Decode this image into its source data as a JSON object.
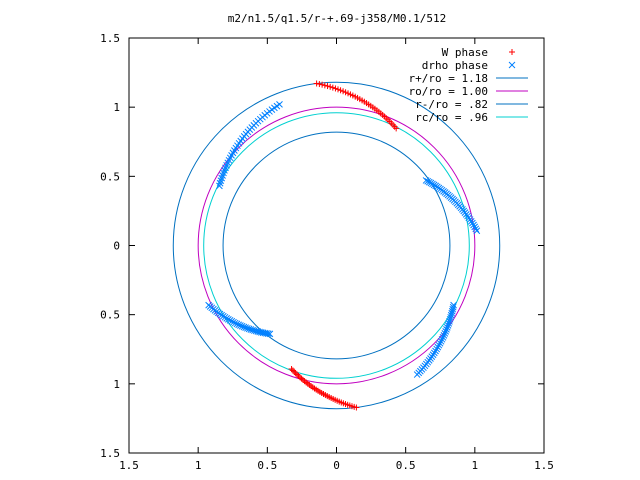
{
  "chart_data": {
    "type": "scatter",
    "title": "m2/n1.5/q1.5/r-+.69-j358/M0.1/512",
    "xlim": [
      -1.5,
      1.5
    ],
    "ylim": [
      -1.5,
      1.5
    ],
    "xticks": [
      {
        "value": -1.5,
        "label": "1.5"
      },
      {
        "value": -1,
        "label": "1"
      },
      {
        "value": -0.5,
        "label": "0.5"
      },
      {
        "value": 0,
        "label": "0"
      },
      {
        "value": 0.5,
        "label": "0.5"
      },
      {
        "value": 1,
        "label": "1"
      },
      {
        "value": 1.5,
        "label": "1.5"
      }
    ],
    "yticks": [
      {
        "value": 1.5,
        "label": "1.5"
      },
      {
        "value": 1,
        "label": "1"
      },
      {
        "value": 0.5,
        "label": "0.5"
      },
      {
        "value": 0,
        "label": "0"
      },
      {
        "value": -0.5,
        "label": "0.5"
      },
      {
        "value": -1,
        "label": "1"
      },
      {
        "value": -1.5,
        "label": "1.5"
      }
    ],
    "legend_position": "top-right",
    "grid": false,
    "series": [
      {
        "name": "W phase",
        "marker": "+",
        "color": "#ff0000",
        "arcs": [
          {
            "r_start": 1.18,
            "r_end": 0.95,
            "theta_start": 97,
            "theta_end": 63
          },
          {
            "r_start": 0.95,
            "r_end": 1.18,
            "theta_start": 250,
            "theta_end": 277
          }
        ]
      },
      {
        "name": "drho phase",
        "marker": "x",
        "color": "#0080ff",
        "arcs": [
          {
            "r_start": 1.1,
            "r_end": 0.95,
            "theta_start": 112,
            "theta_end": 153
          },
          {
            "r_start": 1.02,
            "r_end": 0.8,
            "theta_start": 205,
            "theta_end": 233
          },
          {
            "r_start": 0.8,
            "r_end": 1.02,
            "theta_start": 36,
            "theta_end": 6
          },
          {
            "r_start": 0.95,
            "r_end": 1.1,
            "theta_start": 333,
            "theta_end": 302
          }
        ]
      },
      {
        "name": "r+/ro = 1.18",
        "type": "circle",
        "radius": 1.18,
        "color": "#0070c0"
      },
      {
        "name": "ro/ro = 1.00",
        "type": "circle",
        "radius": 1.0,
        "color": "#c000c0"
      },
      {
        "name": "r-/ro = .82",
        "type": "circle",
        "radius": 0.82,
        "color": "#0070c0"
      },
      {
        "name": "rc/ro = .96",
        "type": "circle",
        "radius": 0.96,
        "color": "#00d0d0"
      }
    ]
  }
}
